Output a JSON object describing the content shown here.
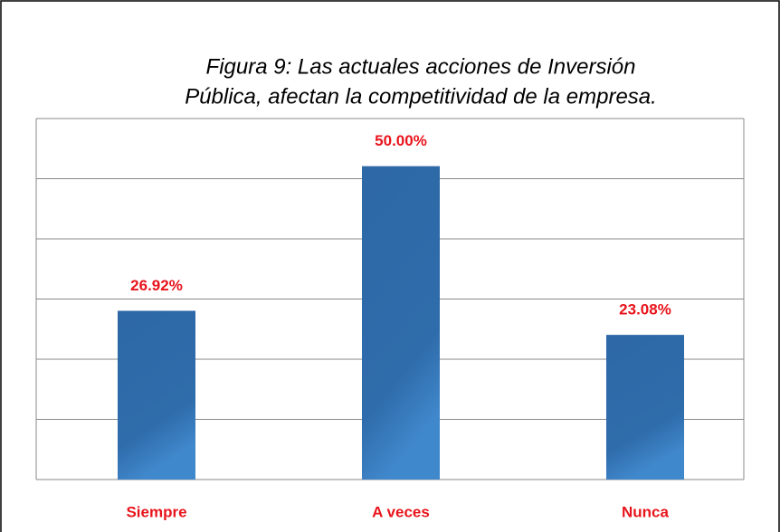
{
  "chart_data": {
    "type": "bar",
    "title": [
      "Figura 9: Las actuales acciones de Inversión",
      "Pública, afectan la competitividad de la empresa."
    ],
    "categories": [
      "Siempre",
      "A veces",
      "Nunca"
    ],
    "values": [
      26.92,
      50,
      23.08
    ],
    "value_labels": [
      "26.92%",
      "50.00%",
      "23.08%"
    ],
    "color": "#2f6cab",
    "label_color": "#e8141b",
    "ylim": [
      0,
      57.6
    ],
    "yticks": [
      0,
      9.6,
      19.2,
      28.8,
      38.4,
      48,
      57.6
    ],
    "grid": true
  }
}
